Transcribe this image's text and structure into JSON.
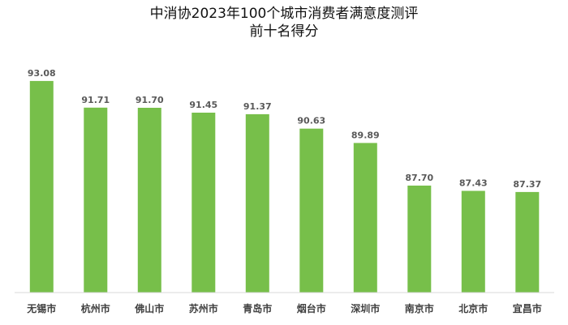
{
  "chart_data": {
    "type": "bar",
    "title_line1": "中消协2023年100个城市消费者满意度测评",
    "title_line2": "前十名得分",
    "categories": [
      "无锡市",
      "杭州市",
      "佛山市",
      "苏州市",
      "青岛市",
      "烟台市",
      "深圳市",
      "南京市",
      "北京市",
      "宜昌市"
    ],
    "values": [
      93.08,
      91.71,
      91.7,
      91.45,
      91.37,
      90.63,
      89.89,
      87.7,
      87.43,
      87.37
    ],
    "value_labels": [
      "93.08",
      "91.71",
      "91.70",
      "91.45",
      "91.37",
      "90.63",
      "89.89",
      "87.70",
      "87.43",
      "87.37"
    ],
    "ylim": [
      82.2,
      93.2
    ],
    "grid": false,
    "legend": false,
    "bar_color": "#77bf4a"
  }
}
